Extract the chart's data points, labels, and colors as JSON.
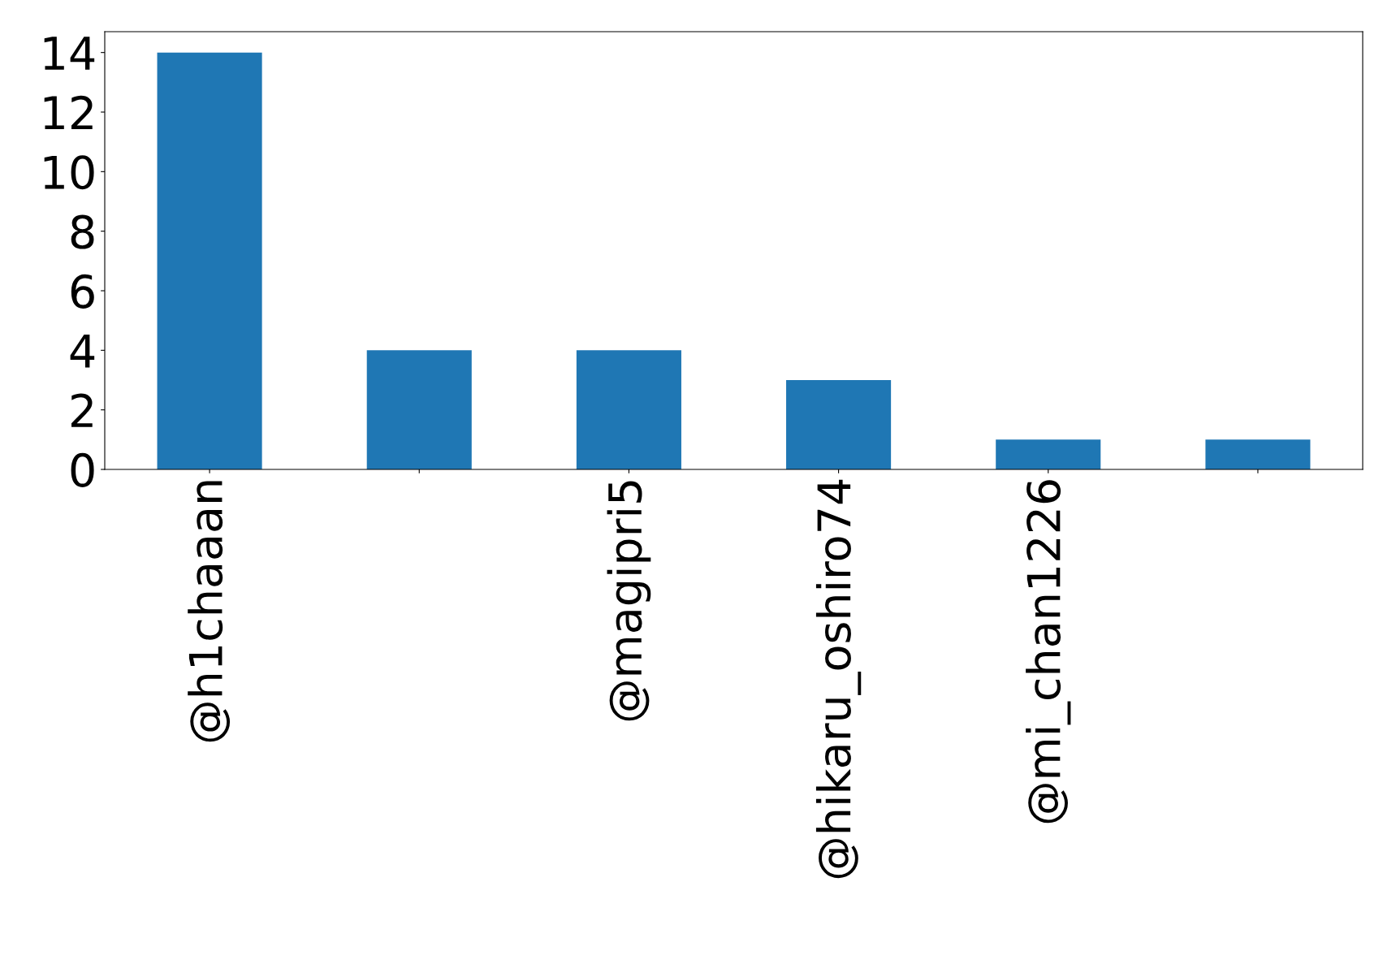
{
  "chart_data": {
    "type": "bar",
    "categories": [
      "@h1chaaan",
      null,
      "@magipri5",
      "@hikaru_oshiro74",
      "@mi_chan1226",
      null
    ],
    "values": [
      14,
      4,
      4,
      3,
      1,
      1
    ],
    "color": "#1f77b4",
    "ylim": [
      0,
      14.7
    ],
    "yticks": [
      0,
      2,
      4,
      6,
      8,
      10,
      12,
      14
    ],
    "grid": false,
    "legend": false
  }
}
